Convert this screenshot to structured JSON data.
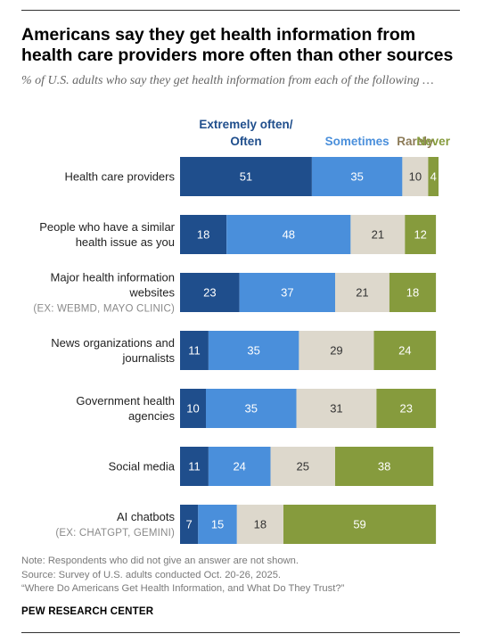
{
  "title": "Americans say they get health information from health care providers more often than other sources",
  "subtitle": "% of U.S. adults who say they get health information from each of the following …",
  "colors": {
    "extremely_often": "#1f4e8c",
    "sometimes": "#4a8fdb",
    "rarely": "#ddd8cc",
    "never": "#869b3d",
    "rarely_label": "#8c7b58",
    "never_label": "#869b3d"
  },
  "chart_data": {
    "type": "bar",
    "orientation": "horizontal",
    "stacked": true,
    "legend_placement": "top",
    "categories": [
      {
        "label": [
          "Health care providers"
        ],
        "sub": []
      },
      {
        "label": [
          "People who have a similar",
          "health issue as you"
        ],
        "sub": []
      },
      {
        "label": [
          "Major health information",
          "websites"
        ],
        "sub": [
          "(EX: WEBMD, MAYO CLINIC)"
        ]
      },
      {
        "label": [
          "News organizations and",
          "journalists"
        ],
        "sub": []
      },
      {
        "label": [
          "Government health",
          "agencies"
        ],
        "sub": []
      },
      {
        "label": [
          "Social media"
        ],
        "sub": []
      },
      {
        "label": [
          "AI chatbots"
        ],
        "sub": [
          "(EX: CHATGPT, GEMINI)"
        ]
      }
    ],
    "series": [
      {
        "name": "Extremely often/ Often",
        "legend_lines": [
          "Extremely often/",
          "Often"
        ],
        "values": [
          51,
          18,
          23,
          11,
          10,
          11,
          7
        ]
      },
      {
        "name": "Sometimes",
        "legend_lines": [
          "Sometimes"
        ],
        "values": [
          35,
          48,
          37,
          35,
          35,
          24,
          15
        ]
      },
      {
        "name": "Rarely",
        "legend_lines": [
          "Rarely"
        ],
        "values": [
          10,
          21,
          21,
          29,
          31,
          25,
          18
        ]
      },
      {
        "name": "Never",
        "legend_lines": [
          "Never"
        ],
        "values": [
          4,
          12,
          18,
          24,
          23,
          38,
          59
        ]
      }
    ]
  },
  "notes": [
    "Note: Respondents who did not give an answer are not shown.",
    "Source: Survey of U.S. adults conducted Oct. 20-26, 2025.",
    "“Where Do Americans Get Health Information, and What Do They Trust?”"
  ],
  "brand": "PEW RESEARCH CENTER"
}
